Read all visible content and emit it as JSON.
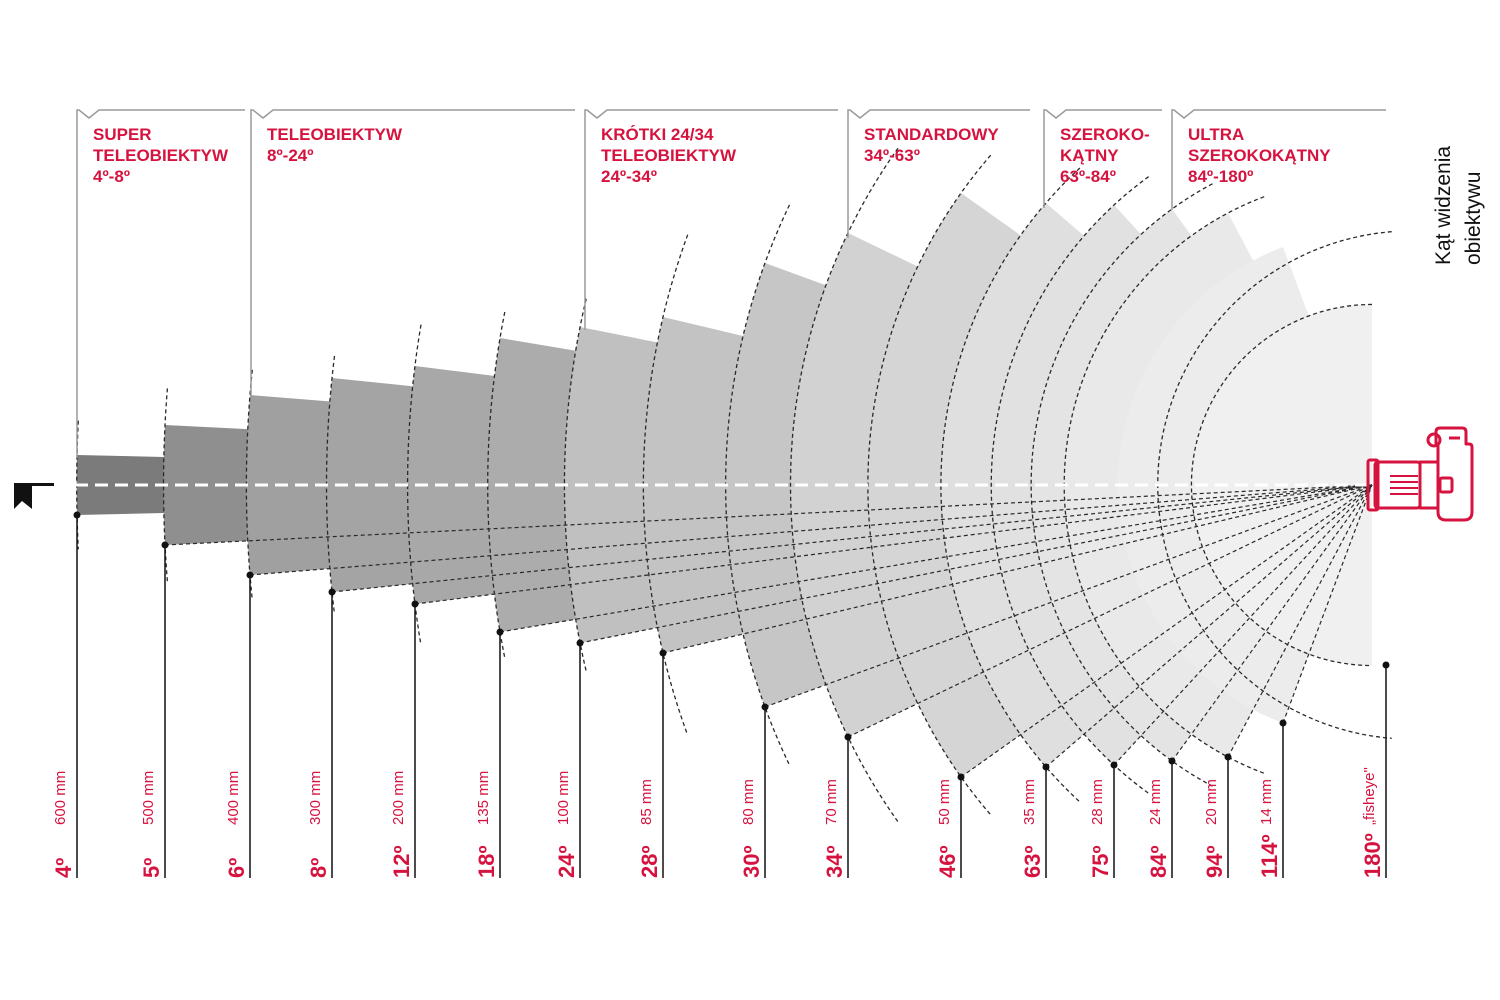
{
  "side_label": {
    "line1": "Kąt widzenia",
    "line2": "obiektywu"
  },
  "categories": [
    {
      "name": "super-tele",
      "lines": [
        "SUPER",
        "TELEOBIEKTYW",
        "4º-8º"
      ]
    },
    {
      "name": "tele",
      "lines": [
        "TELEOBIEKTYW",
        "8º-24º"
      ]
    },
    {
      "name": "short-tele",
      "lines": [
        "KRÓTKI 24/34",
        "TELEOBIEKTYW",
        "24º-34º"
      ]
    },
    {
      "name": "standard",
      "lines": [
        "STANDARDOWY",
        "34º-63º"
      ]
    },
    {
      "name": "wide",
      "lines": [
        "SZEROKO-",
        "KĄTNY",
        "63º-84º"
      ]
    },
    {
      "name": "ultra-wide",
      "lines": [
        "ULTRA",
        "SZEROKOKĄTNY",
        "84º-180º"
      ]
    }
  ],
  "lenses": [
    {
      "angle": "4º",
      "focal": "600 mm"
    },
    {
      "angle": "5º",
      "focal": "500 mm"
    },
    {
      "angle": "6º",
      "focal": "400 mm"
    },
    {
      "angle": "8º",
      "focal": "300 mm"
    },
    {
      "angle": "12º",
      "focal": "200 mm"
    },
    {
      "angle": "18º",
      "focal": "135 mm"
    },
    {
      "angle": "24º",
      "focal": "100 mm"
    },
    {
      "angle": "28º",
      "focal": "85 mm"
    },
    {
      "angle": "30º",
      "focal": "80 mm"
    },
    {
      "angle": "34º",
      "focal": "70 mm"
    },
    {
      "angle": "46º",
      "focal": "50 mm"
    },
    {
      "angle": "63º",
      "focal": "35 mm"
    },
    {
      "angle": "75º",
      "focal": "28 mm"
    },
    {
      "angle": "84º",
      "focal": "24 mm"
    },
    {
      "angle": "94º",
      "focal": "20 mm"
    },
    {
      "angle": "114º",
      "focal": "14 mm"
    },
    {
      "angle": "180º",
      "focal": "„fisheye\""
    }
  ],
  "colors": {
    "accent": "#d6133f",
    "ink": "#111111"
  },
  "icons": {
    "camera": "camera-icon",
    "subject": "subject-flag-icon"
  }
}
